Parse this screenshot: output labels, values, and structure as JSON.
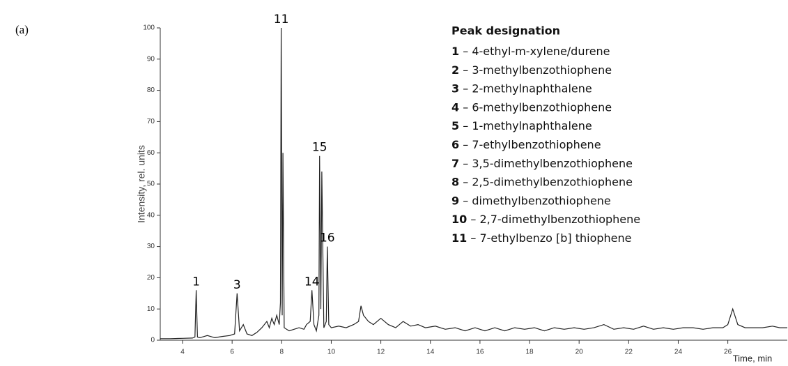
{
  "chart_data": {
    "type": "line",
    "panel_label": "(a)",
    "ylabel": "Intensity, rel. units",
    "xlabel": "Time, min",
    "xlim": [
      3.1,
      28.4
    ],
    "xticks": [
      4,
      6,
      8,
      10,
      12,
      14,
      16,
      18,
      20,
      22,
      24,
      26
    ],
    "ylim": [
      0,
      100
    ],
    "yticks": [
      0,
      10,
      20,
      30,
      40,
      50,
      60,
      70,
      80,
      90,
      100
    ],
    "color": "#222222",
    "x": [
      3.1,
      3.5,
      4.0,
      4.4,
      4.5,
      4.55,
      4.6,
      4.7,
      5.0,
      5.3,
      5.6,
      5.9,
      6.1,
      6.2,
      6.3,
      6.45,
      6.6,
      6.8,
      7.0,
      7.2,
      7.4,
      7.5,
      7.6,
      7.7,
      7.8,
      7.9,
      7.95,
      7.98,
      8.02,
      8.05,
      8.1,
      8.3,
      8.5,
      8.7,
      8.9,
      9.0,
      9.15,
      9.22,
      9.3,
      9.4,
      9.5,
      9.53,
      9.58,
      9.62,
      9.7,
      9.8,
      9.84,
      9.9,
      10.0,
      10.3,
      10.6,
      10.9,
      11.1,
      11.2,
      11.3,
      11.5,
      11.7,
      12.0,
      12.3,
      12.6,
      12.9,
      13.2,
      13.5,
      13.8,
      14.2,
      14.6,
      15.0,
      15.4,
      15.8,
      16.2,
      16.6,
      17.0,
      17.4,
      17.8,
      18.2,
      18.6,
      19.0,
      19.4,
      19.8,
      20.2,
      20.6,
      21.0,
      21.4,
      21.8,
      22.2,
      22.6,
      23.0,
      23.4,
      23.8,
      24.2,
      24.6,
      25.0,
      25.4,
      25.8,
      26.0,
      26.2,
      26.4,
      26.7,
      27.0,
      27.4,
      27.8,
      28.1,
      28.4
    ],
    "values": [
      0.5,
      0.5,
      0.6,
      0.7,
      1,
      16,
      1,
      0.8,
      1.5,
      0.8,
      1.2,
      1.5,
      2,
      15,
      3,
      5,
      2,
      1.5,
      2.5,
      4,
      6,
      4,
      7,
      5,
      8,
      5,
      12,
      100,
      8,
      60,
      4,
      3,
      3.5,
      4,
      3.5,
      5,
      6,
      16,
      5,
      3,
      8,
      59,
      10,
      54,
      4,
      6,
      30,
      5,
      4,
      4.5,
      4,
      5,
      6,
      11,
      8,
      6,
      5,
      7,
      5,
      4,
      6,
      4.5,
      5,
      4,
      4.5,
      3.5,
      4,
      3,
      4,
      3,
      4,
      3,
      4,
      3.5,
      4,
      3,
      4,
      3.5,
      4,
      3.5,
      4,
      5,
      3.5,
      4,
      3.5,
      4.5,
      3.5,
      4,
      3.5,
      4,
      4,
      3.5,
      4,
      4,
      5,
      10,
      5,
      4,
      4,
      4,
      4.5,
      4,
      4
    ],
    "annotations": [
      {
        "text": "1",
        "x": 4.55,
        "y": 16
      },
      {
        "text": "3",
        "x": 6.2,
        "y": 15
      },
      {
        "text": "11",
        "x": 7.98,
        "y": 100
      },
      {
        "text": "14",
        "x": 9.22,
        "y": 16
      },
      {
        "text": "15",
        "x": 9.53,
        "y": 59
      },
      {
        "text": "16",
        "x": 9.84,
        "y": 30
      }
    ],
    "peak_designation": {
      "title": "Peak designation",
      "items": [
        {
          "number": "1",
          "name": "4-ethyl-m-xylene/durene"
        },
        {
          "number": "2",
          "name": "3-methylbenzothiophene"
        },
        {
          "number": "3",
          "name": "2-methylnaphthalene"
        },
        {
          "number": "4",
          "name": "6-methylbenzothiophene"
        },
        {
          "number": "5",
          "name": "1-methylnaphthalene"
        },
        {
          "number": "6",
          "name": "7-ethylbenzothiophene"
        },
        {
          "number": "7",
          "name": "3,5-dimethylbenzothiophene"
        },
        {
          "number": "8",
          "name": "2,5-dimethylbenzothiophene"
        },
        {
          "number": "9",
          "name": "dimethylbenzothiophene"
        },
        {
          "number": "10",
          "name": "2,7-dimethylbenzothiophene"
        },
        {
          "number": "11",
          "name": "7-ethylbenzo [b] thiophene"
        }
      ]
    }
  }
}
